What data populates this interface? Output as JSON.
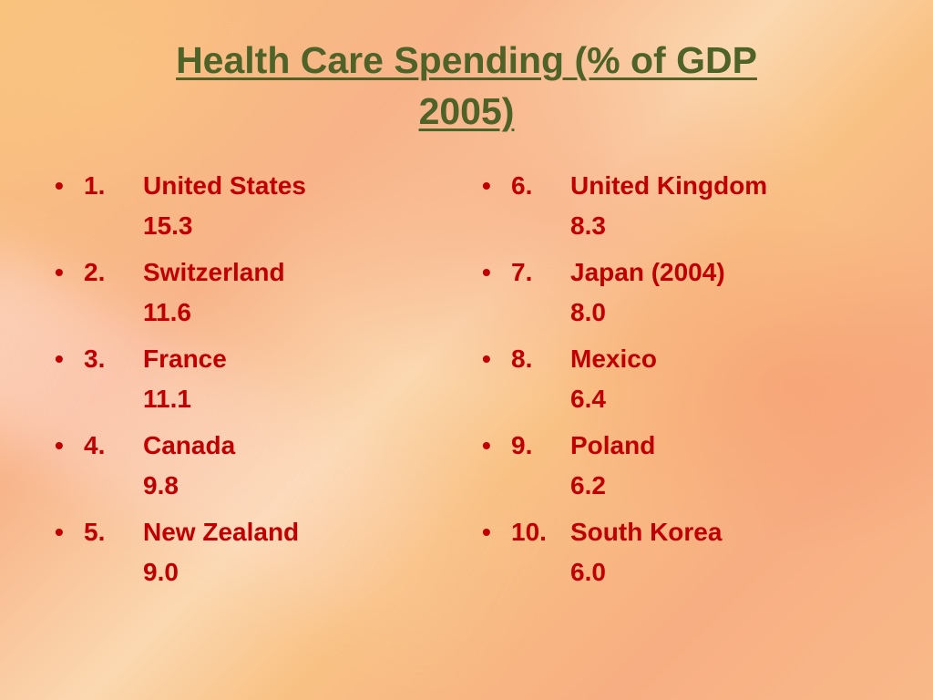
{
  "title": {
    "lines": [
      "Health Care Spending (% of GDP",
      "2005)"
    ]
  },
  "columns": [
    [
      {
        "rank": "1.",
        "name": "United States",
        "value": "15.3"
      },
      {
        "rank": "2.",
        "name": "Switzerland",
        "value": "11.6"
      },
      {
        "rank": "3.",
        "name": "France",
        "value": "11.1"
      },
      {
        "rank": "4.",
        "name": "Canada",
        "value": "9.8"
      },
      {
        "rank": "5.",
        "name": "New Zealand",
        "value": "9.0"
      }
    ],
    [
      {
        "rank": "6.",
        "name": "United Kingdom",
        "value": "8.3"
      },
      {
        "rank": "7.",
        "name": "Japan (2004)",
        "value": "8.0"
      },
      {
        "rank": "8.",
        "name": "Mexico",
        "value": "6.4"
      },
      {
        "rank": "9.",
        "name": "Poland",
        "value": "6.2"
      },
      {
        "rank": "10.",
        "name": "South Korea",
        "value": "6.0"
      }
    ]
  ]
}
